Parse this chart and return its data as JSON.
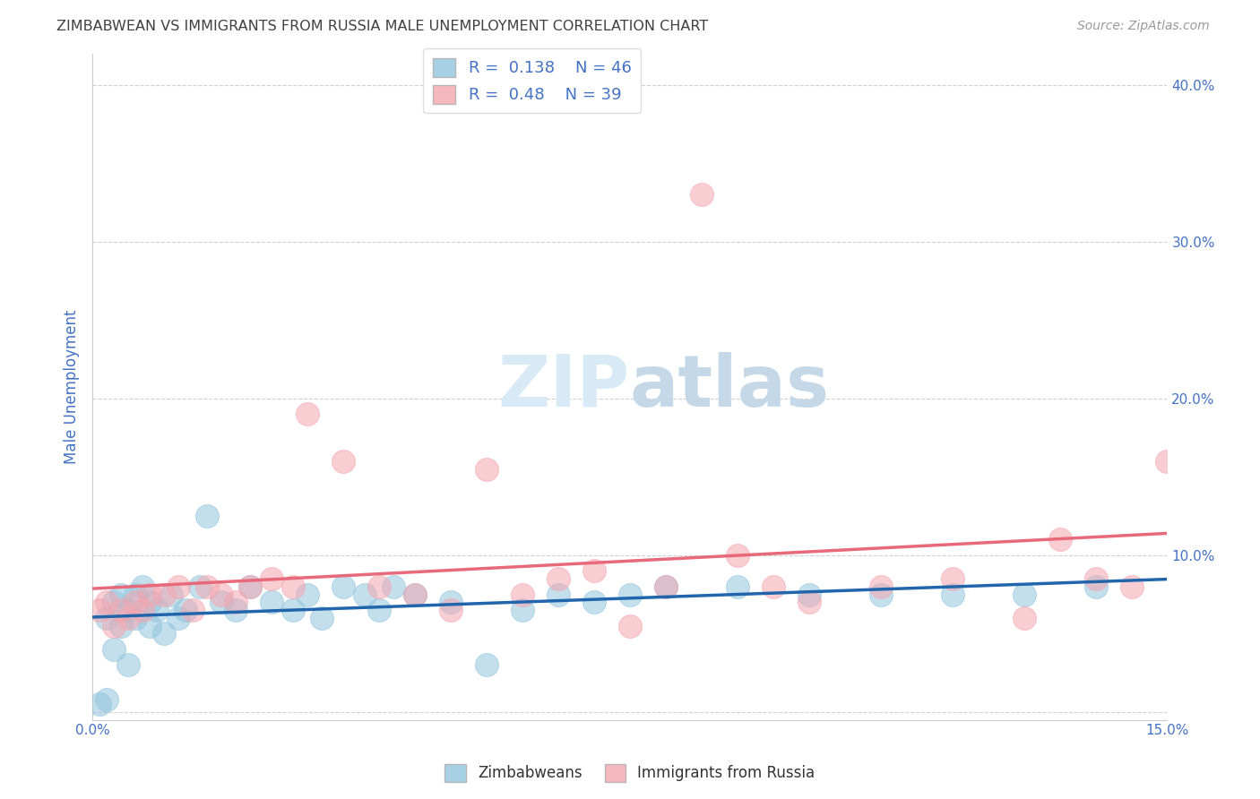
{
  "title": "ZIMBABWEAN VS IMMIGRANTS FROM RUSSIA MALE UNEMPLOYMENT CORRELATION CHART",
  "source": "Source: ZipAtlas.com",
  "ylabel": "Male Unemployment",
  "xlim": [
    0.0,
    0.15
  ],
  "ylim": [
    -0.005,
    0.42
  ],
  "yticks": [
    0.0,
    0.1,
    0.2,
    0.3,
    0.4
  ],
  "ytick_labels": [
    "",
    "10.0%",
    "20.0%",
    "30.0%",
    "40.0%"
  ],
  "xticks": [
    0.0,
    0.05,
    0.1,
    0.15
  ],
  "xtick_labels": [
    "0.0%",
    "",
    "",
    "15.0%"
  ],
  "zimbabwe_R": 0.138,
  "zimbabwe_N": 46,
  "russia_R": 0.48,
  "russia_N": 39,
  "blue_color": "#92c5de",
  "pink_color": "#f4a6b0",
  "blue_line_color": "#2166ac",
  "pink_line_color": "#e8697a",
  "watermark_zip_color": "#d8eaf5",
  "watermark_atlas_color": "#c5d8e8",
  "background_color": "#ffffff",
  "grid_color": "#d0d0d0",
  "title_color": "#404040",
  "axis_label_color": "#4472c4",
  "zimbabwe_x": [
    0.001,
    0.002,
    0.002,
    0.003,
    0.003,
    0.004,
    0.004,
    0.005,
    0.005,
    0.006,
    0.006,
    0.007,
    0.008,
    0.008,
    0.009,
    0.01,
    0.011,
    0.012,
    0.013,
    0.015,
    0.016,
    0.018,
    0.02,
    0.022,
    0.025,
    0.028,
    0.03,
    0.032,
    0.035,
    0.038,
    0.04,
    0.042,
    0.045,
    0.05,
    0.055,
    0.06,
    0.065,
    0.07,
    0.075,
    0.08,
    0.09,
    0.1,
    0.11,
    0.12,
    0.13,
    0.14
  ],
  "zimbabwe_y": [
    0.005,
    0.008,
    0.06,
    0.04,
    0.07,
    0.055,
    0.075,
    0.065,
    0.03,
    0.06,
    0.075,
    0.08,
    0.055,
    0.07,
    0.065,
    0.05,
    0.075,
    0.06,
    0.065,
    0.08,
    0.125,
    0.07,
    0.065,
    0.08,
    0.07,
    0.065,
    0.075,
    0.06,
    0.08,
    0.075,
    0.065,
    0.08,
    0.075,
    0.07,
    0.03,
    0.065,
    0.075,
    0.07,
    0.075,
    0.08,
    0.08,
    0.075,
    0.075,
    0.075,
    0.075,
    0.08
  ],
  "russia_x": [
    0.001,
    0.002,
    0.003,
    0.004,
    0.005,
    0.006,
    0.007,
    0.008,
    0.01,
    0.012,
    0.014,
    0.016,
    0.018,
    0.02,
    0.022,
    0.025,
    0.028,
    0.03,
    0.035,
    0.04,
    0.045,
    0.05,
    0.055,
    0.06,
    0.065,
    0.07,
    0.075,
    0.08,
    0.085,
    0.09,
    0.095,
    0.1,
    0.11,
    0.12,
    0.13,
    0.135,
    0.14,
    0.145,
    0.15
  ],
  "russia_y": [
    0.065,
    0.07,
    0.055,
    0.065,
    0.06,
    0.07,
    0.065,
    0.075,
    0.075,
    0.08,
    0.065,
    0.08,
    0.075,
    0.07,
    0.08,
    0.085,
    0.08,
    0.19,
    0.16,
    0.08,
    0.075,
    0.065,
    0.155,
    0.075,
    0.085,
    0.09,
    0.055,
    0.08,
    0.33,
    0.1,
    0.08,
    0.07,
    0.08,
    0.085,
    0.06,
    0.11,
    0.085,
    0.08,
    0.16
  ]
}
